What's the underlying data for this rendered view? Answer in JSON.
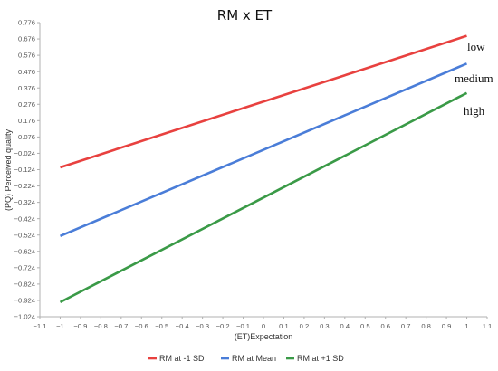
{
  "chart_data": {
    "type": "line",
    "title": "RM x ET",
    "xlabel": "(ET)Expectation",
    "ylabel": "(PQ)  Perceived quality",
    "xlim": [
      -1.1,
      1.1
    ],
    "ylim": [
      -1.024,
      0.776
    ],
    "x_ticks": [
      -1.1,
      -1,
      -0.9,
      -0.8,
      -0.7,
      -0.6,
      -0.5,
      -0.4,
      -0.3,
      -0.2,
      -0.1,
      0,
      0.1,
      0.2,
      0.3,
      0.4,
      0.5,
      0.6,
      0.7,
      0.8,
      0.9,
      1,
      1.1
    ],
    "x_tick_labels": [
      "−1.1",
      "−1",
      "−0.9",
      "−0.8",
      "−0.7",
      "−0.6",
      "−0.5",
      "−0.4",
      "−0.3",
      "−0.2",
      "−0.1",
      "0",
      "0.1",
      "0.2",
      "0.3",
      "0.4",
      "0.5",
      "0.6",
      "0.7",
      "0.8",
      "0.9",
      "1",
      "1.1"
    ],
    "y_ticks": [
      0.776,
      0.676,
      0.576,
      0.476,
      0.376,
      0.276,
      0.176,
      0.076,
      -0.024,
      -0.124,
      -0.224,
      -0.324,
      -0.424,
      -0.524,
      -0.624,
      -0.724,
      -0.824,
      -0.924,
      -1.024
    ],
    "y_tick_labels": [
      "0.776",
      "0.676",
      "0.576",
      "0.476",
      "0.376",
      "0.276",
      "0.176",
      "0.076",
      "−0.024",
      "−0.124",
      "−0.224",
      "−0.324",
      "−0.424",
      "−0.524",
      "−0.624",
      "−0.724",
      "−0.824",
      "−0.924",
      "−1.024"
    ],
    "grid": false,
    "legend_position": "bottom",
    "series": [
      {
        "name": "RM at -1 SD",
        "color": "#e8413f",
        "x": [
          -1,
          1
        ],
        "y": [
          -0.11,
          0.695
        ]
      },
      {
        "name": "RM at Mean",
        "color": "#4a7dd8",
        "x": [
          -1,
          1
        ],
        "y": [
          -0.53,
          0.525
        ]
      },
      {
        "name": "RM at +1 SD",
        "color": "#3a9a47",
        "x": [
          -1,
          1
        ],
        "y": [
          -0.935,
          0.345
        ]
      }
    ],
    "annotations": [
      "low",
      "medium",
      "high"
    ]
  }
}
